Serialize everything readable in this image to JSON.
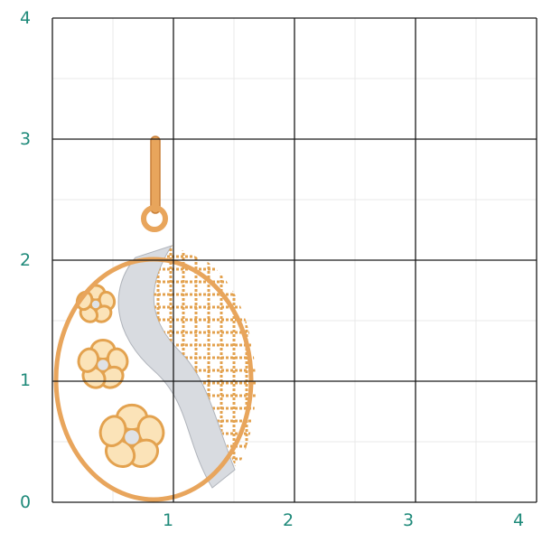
{
  "grid": {
    "x_labels": [
      "0",
      "1",
      "2",
      "3",
      "4"
    ],
    "y_labels": [
      "0",
      "1",
      "2",
      "3",
      "4"
    ],
    "label_color": "#1f8a7a",
    "major_line_color": "#1a1a1a",
    "minor_line_color": "#e8e8e8"
  },
  "product": {
    "type": "oval pendant with flowers and lattice",
    "gold_color": "#e9a85a",
    "silver_color": "#d8dbe0"
  }
}
